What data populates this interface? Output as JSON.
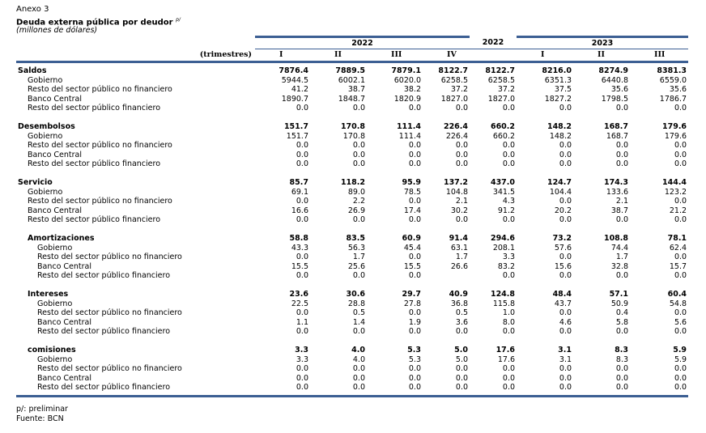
{
  "header": {
    "annex": "Anexo 3",
    "title": "Deuda externa pública por deudor",
    "title_note": "p/",
    "units": "(millones de dólares)"
  },
  "table": {
    "year_headers": [
      "2022",
      "2022",
      "2023"
    ],
    "period_label": "(trimestres)",
    "periods": [
      "I",
      "II",
      "III",
      "IV",
      "I",
      "II",
      "III"
    ],
    "groups": [
      {
        "label": "Saldos",
        "values": [
          "7876.4",
          "7889.5",
          "7879.1",
          "8122.7",
          "8122.7",
          "8216.0",
          "8274.9",
          "8381.3"
        ],
        "rows": [
          {
            "label": "Gobierno",
            "values": [
              "5944.5",
              "6002.1",
              "6020.0",
              "6258.5",
              "6258.5",
              "6351.3",
              "6440.8",
              "6559.0"
            ]
          },
          {
            "label": "Resto del sector público no financiero",
            "values": [
              "41.2",
              "38.7",
              "38.2",
              "37.2",
              "37.2",
              "37.5",
              "35.6",
              "35.6"
            ]
          },
          {
            "label": "Banco Central",
            "values": [
              "1890.7",
              "1848.7",
              "1820.9",
              "1827.0",
              "1827.0",
              "1827.2",
              "1798.5",
              "1786.7"
            ]
          },
          {
            "label": "Resto del sector público financiero",
            "values": [
              "0.0",
              "0.0",
              "0.0",
              "0.0",
              "0.0",
              "0.0",
              "0.0",
              "0.0"
            ]
          }
        ]
      },
      {
        "label": "Desembolsos",
        "values": [
          "151.7",
          "170.8",
          "111.4",
          "226.4",
          "660.2",
          "148.2",
          "168.7",
          "179.6"
        ],
        "rows": [
          {
            "label": "Gobierno",
            "values": [
              "151.7",
              "170.8",
              "111.4",
              "226.4",
              "660.2",
              "148.2",
              "168.7",
              "179.6"
            ]
          },
          {
            "label": "Resto del sector público no financiero",
            "values": [
              "0.0",
              "0.0",
              "0.0",
              "0.0",
              "0.0",
              "0.0",
              "0.0",
              "0.0"
            ]
          },
          {
            "label": "Banco Central",
            "values": [
              "0.0",
              "0.0",
              "0.0",
              "0.0",
              "0.0",
              "0.0",
              "0.0",
              "0.0"
            ]
          },
          {
            "label": "Resto del sector público financiero",
            "values": [
              "0.0",
              "0.0",
              "0.0",
              "0.0",
              "0.0",
              "0.0",
              "0.0",
              "0.0"
            ]
          }
        ]
      },
      {
        "label": "Servicio",
        "values": [
          "85.7",
          "118.2",
          "95.9",
          "137.2",
          "437.0",
          "124.7",
          "174.3",
          "144.4"
        ],
        "rows": [
          {
            "label": "Gobierno",
            "values": [
              "69.1",
              "89.0",
              "78.5",
              "104.8",
              "341.5",
              "104.4",
              "133.6",
              "123.2"
            ]
          },
          {
            "label": "Resto del sector público no financiero",
            "values": [
              "0.0",
              "2.2",
              "0.0",
              "2.1",
              "4.3",
              "0.0",
              "2.1",
              "0.0"
            ]
          },
          {
            "label": "Banco Central",
            "values": [
              "16.6",
              "26.9",
              "17.4",
              "30.2",
              "91.2",
              "20.2",
              "38.7",
              "21.2"
            ]
          },
          {
            "label": "Resto del sector público financiero",
            "values": [
              "0.0",
              "0.0",
              "0.0",
              "0.0",
              "0.0",
              "0.0",
              "0.0",
              "0.0"
            ]
          }
        ]
      },
      {
        "label": "Amortizaciones",
        "values": [
          "58.8",
          "83.5",
          "60.9",
          "91.4",
          "294.6",
          "73.2",
          "108.8",
          "78.1"
        ],
        "rows": [
          {
            "label": "Gobierno",
            "values": [
              "43.3",
              "56.3",
              "45.4",
              "63.1",
              "208.1",
              "57.6",
              "74.4",
              "62.4"
            ]
          },
          {
            "label": "Resto del sector público no financiero",
            "values": [
              "0.0",
              "1.7",
              "0.0",
              "1.7",
              "3.3",
              "0.0",
              "1.7",
              "0.0"
            ]
          },
          {
            "label": "Banco Central",
            "values": [
              "15.5",
              "25.6",
              "15.5",
              "26.6",
              "83.2",
              "15.6",
              "32.8",
              "15.7"
            ]
          },
          {
            "label": "Resto del sector público financiero",
            "values": [
              "0.0",
              "0.0",
              "0.0",
              null,
              "0.0",
              "0.0",
              "0.0",
              "0.0"
            ]
          }
        ]
      },
      {
        "label": "Intereses",
        "values": [
          "23.6",
          "30.6",
          "29.7",
          "40.9",
          "124.8",
          "48.4",
          "57.1",
          "60.4"
        ],
        "rows": [
          {
            "label": "Gobierno",
            "values": [
              "22.5",
              "28.8",
              "27.8",
              "36.8",
              "115.8",
              "43.7",
              "50.9",
              "54.8"
            ]
          },
          {
            "label": "Resto del sector público no financiero",
            "values": [
              "0.0",
              "0.5",
              "0.0",
              "0.5",
              "1.0",
              "0.0",
              "0.4",
              "0.0"
            ]
          },
          {
            "label": "Banco Central",
            "values": [
              "1.1",
              "1.4",
              "1.9",
              "3.6",
              "8.0",
              "4.6",
              "5.8",
              "5.6"
            ]
          },
          {
            "label": "Resto del sector público financiero",
            "values": [
              "0.0",
              "0.0",
              "0.0",
              "0.0",
              "0.0",
              "0.0",
              "0.0",
              "0.0"
            ]
          }
        ]
      },
      {
        "label": "comisiones",
        "values": [
          "3.3",
          "4.0",
          "5.3",
          "5.0",
          "17.6",
          "3.1",
          "8.3",
          "5.9"
        ],
        "rows": [
          {
            "label": "Gobierno",
            "values": [
              "3.3",
              "4.0",
              "5.3",
              "5.0",
              "17.6",
              "3.1",
              "8.3",
              "5.9"
            ]
          },
          {
            "label": "Resto del sector público no financiero",
            "values": [
              "0.0",
              "0.0",
              "0.0",
              "0.0",
              "0.0",
              "0.0",
              "0.0",
              "0.0"
            ]
          },
          {
            "label": "Banco Central",
            "values": [
              "0.0",
              "0.0",
              "0.0",
              "0.0",
              "0.0",
              "0.0",
              "0.0",
              "0.0"
            ]
          },
          {
            "label": "Resto del sector público financiero",
            "values": [
              "0.0",
              "0.0",
              "0.0",
              "0.0",
              "0.0",
              "0.0",
              "0.0",
              "0.0"
            ]
          }
        ]
      }
    ]
  },
  "footer": {
    "note": "p/: preliminar",
    "source": "Fuente: BCN"
  }
}
